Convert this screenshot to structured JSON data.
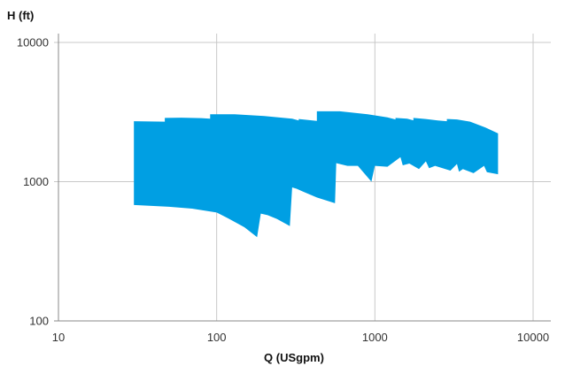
{
  "chart_data": {
    "type": "area",
    "title": "",
    "xlabel": "Q (USgpm)",
    "ylabel": "H (ft)",
    "x_scale": "log",
    "y_scale": "log",
    "xlim": [
      10,
      10000
    ],
    "ylim": [
      100,
      10000
    ],
    "x_ticks": [
      "10",
      "100",
      "1000",
      "10000"
    ],
    "y_ticks": [
      "100",
      "1000",
      "10000"
    ],
    "grid": true,
    "legend": "none",
    "fill_color": "#009fe3",
    "grid_color": "#c8c8c8",
    "axis_color": "#888888",
    "region": {
      "upper": [
        [
          30,
          2720
        ],
        [
          47,
          2700
        ],
        [
          47,
          2870
        ],
        [
          60,
          2880
        ],
        [
          80,
          2860
        ],
        [
          91,
          2830
        ],
        [
          91,
          3050
        ],
        [
          130,
          3050
        ],
        [
          200,
          2960
        ],
        [
          300,
          2830
        ],
        [
          330,
          2750
        ],
        [
          330,
          2820
        ],
        [
          430,
          2730
        ],
        [
          430,
          3200
        ],
        [
          600,
          3200
        ],
        [
          900,
          3050
        ],
        [
          1200,
          2900
        ],
        [
          1350,
          2800
        ],
        [
          1350,
          2870
        ],
        [
          1600,
          2830
        ],
        [
          1750,
          2760
        ],
        [
          1750,
          2870
        ],
        [
          2100,
          2820
        ],
        [
          2500,
          2750
        ],
        [
          2850,
          2720
        ],
        [
          2850,
          2820
        ],
        [
          3300,
          2800
        ],
        [
          4000,
          2700
        ],
        [
          5000,
          2450
        ],
        [
          6000,
          2220
        ]
      ],
      "lower": [
        [
          6000,
          1130
        ],
        [
          5100,
          1170
        ],
        [
          4900,
          1300
        ],
        [
          4200,
          1150
        ],
        [
          3600,
          1230
        ],
        [
          3400,
          1180
        ],
        [
          3300,
          1340
        ],
        [
          3000,
          1200
        ],
        [
          2400,
          1300
        ],
        [
          2200,
          1250
        ],
        [
          2100,
          1400
        ],
        [
          1900,
          1230
        ],
        [
          1650,
          1350
        ],
        [
          1500,
          1310
        ],
        [
          1450,
          1500
        ],
        [
          1200,
          1280
        ],
        [
          1000,
          1300
        ],
        [
          950,
          1000
        ],
        [
          780,
          1300
        ],
        [
          670,
          1300
        ],
        [
          570,
          1360
        ],
        [
          560,
          700
        ],
        [
          430,
          770
        ],
        [
          350,
          850
        ],
        [
          320,
          890
        ],
        [
          300,
          910
        ],
        [
          290,
          480
        ],
        [
          240,
          540
        ],
        [
          210,
          575
        ],
        [
          190,
          590
        ],
        [
          180,
          400
        ],
        [
          150,
          470
        ],
        [
          120,
          540
        ],
        [
          100,
          600
        ],
        [
          70,
          640
        ],
        [
          50,
          660
        ],
        [
          30,
          680
        ]
      ]
    }
  }
}
